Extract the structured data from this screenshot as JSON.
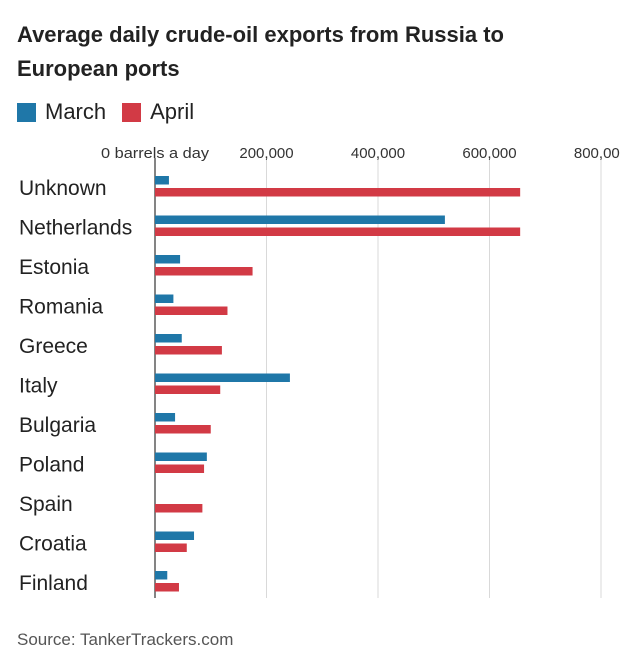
{
  "title": "Average daily crude-oil exports from Russia to European ports",
  "legend": [
    {
      "label": "March",
      "color": "#1f77a8"
    },
    {
      "label": "April",
      "color": "#d23a45"
    }
  ],
  "source": "Source: TankerTrackers.com",
  "chart_data": {
    "type": "bar",
    "orientation": "horizontal",
    "categories": [
      "Unknown",
      "Netherlands",
      "Estonia",
      "Romania",
      "Greece",
      "Italy",
      "Bulgaria",
      "Poland",
      "Spain",
      "Croatia",
      "Finland"
    ],
    "series": [
      {
        "name": "March",
        "color": "#1f77a8",
        "values": [
          25000,
          520000,
          45000,
          33000,
          48000,
          242000,
          36000,
          93000,
          0,
          70000,
          22000
        ]
      },
      {
        "name": "April",
        "color": "#d23a45",
        "values": [
          655000,
          655000,
          175000,
          130000,
          120000,
          117000,
          100000,
          88000,
          85000,
          57000,
          43000
        ]
      }
    ],
    "x_ticks": [
      {
        "value": 0,
        "label": "0 barrels a day"
      },
      {
        "value": 200000,
        "label": "200,000"
      },
      {
        "value": 400000,
        "label": "400,000"
      },
      {
        "value": 600000,
        "label": "600,000"
      },
      {
        "value": 800000,
        "label": "800,000"
      }
    ],
    "xlim": [
      0,
      800000
    ],
    "grid": true,
    "legend_position": "top-left"
  }
}
